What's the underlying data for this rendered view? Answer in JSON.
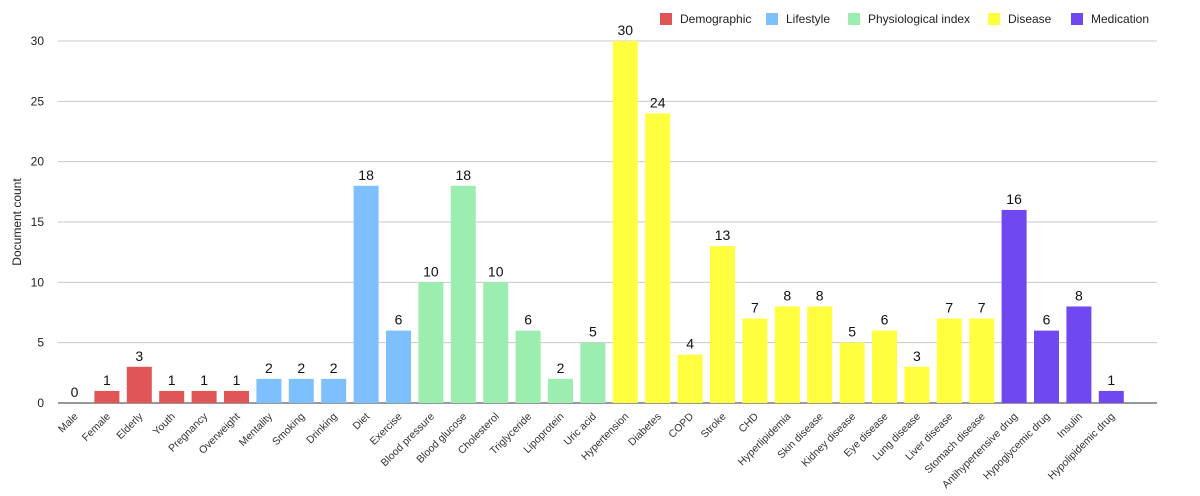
{
  "chart_data": {
    "type": "bar",
    "title": "",
    "xlabel": "",
    "ylabel": "Document count",
    "ylim": [
      0,
      30
    ],
    "yticks": [
      0,
      5,
      10,
      15,
      20,
      25,
      30
    ],
    "grid": true,
    "legend_position": "top-right",
    "groups": [
      {
        "name": "Demographic",
        "color": "#e05555"
      },
      {
        "name": "Lifestyle",
        "color": "#7dbfff"
      },
      {
        "name": "Physiological index",
        "color": "#9ceeb0"
      },
      {
        "name": "Disease",
        "color": "#ffff3f"
      },
      {
        "name": "Medication",
        "color": "#7048f0"
      }
    ],
    "categories": [
      "Male",
      "Female",
      "Elderly",
      "Youth",
      "Pregnancy",
      "Overweight",
      "Mentality",
      "Smoking",
      "Drinking",
      "Diet",
      "Exercise",
      "Blood pressure",
      "Blood glucose",
      "Cholesterol",
      "Triglyceride",
      "Lipoprotein",
      "Uric acid",
      "Hypertension",
      "Diabetes",
      "COPD",
      "Stroke",
      "CHD",
      "Hyperlipidemia",
      "Skin disease",
      "Kidney disease",
      "Eye disease",
      "Lung disease",
      "Liver disease",
      "Stomach disease",
      "Antihypertensive drug",
      "Hypoglycemic drug",
      "Insulin",
      "Hypolipidemic drug"
    ],
    "values": [
      0,
      1,
      3,
      1,
      1,
      1,
      2,
      2,
      2,
      18,
      6,
      10,
      18,
      10,
      6,
      2,
      5,
      30,
      24,
      4,
      13,
      7,
      8,
      8,
      5,
      6,
      3,
      7,
      7,
      16,
      6,
      8,
      1
    ],
    "group_index": [
      0,
      0,
      0,
      0,
      0,
      0,
      1,
      1,
      1,
      1,
      1,
      2,
      2,
      2,
      2,
      2,
      2,
      3,
      3,
      3,
      3,
      3,
      3,
      3,
      3,
      3,
      3,
      3,
      3,
      4,
      4,
      4,
      4
    ]
  }
}
